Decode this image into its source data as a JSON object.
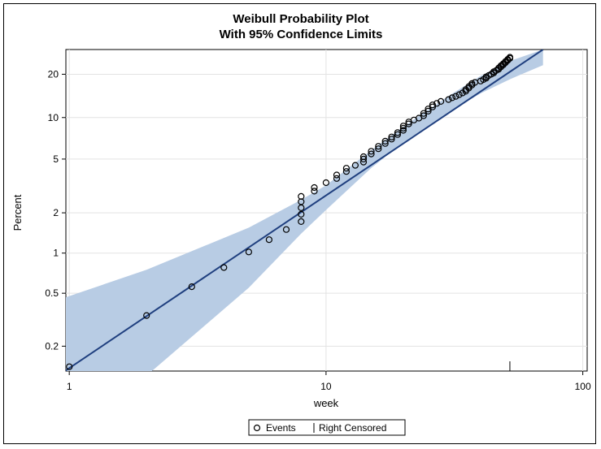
{
  "chart_data": {
    "type": "scatter",
    "title": "Weibull Probability Plot",
    "subtitle": "With 95% Confidence Limits",
    "xlabel": "week",
    "ylabel": "Percent",
    "x_scale": "log",
    "y_scale": "weibull",
    "xlim": [
      0.97,
      104
    ],
    "ylim": [
      0.13,
      29
    ],
    "x_ticks": [
      1,
      10,
      100
    ],
    "x_tick_labels": [
      "1",
      "10",
      "100"
    ],
    "y_ticks": [
      0.2,
      0.5,
      1,
      2,
      5,
      10,
      20
    ],
    "y_tick_labels": [
      "0.2",
      "0.5",
      "1",
      "2",
      "5",
      "10",
      "20"
    ],
    "grid": true,
    "censor_mark_week": 52,
    "legend": {
      "placement": "bottom",
      "entries": [
        {
          "symbol": "circle",
          "label": "Events"
        },
        {
          "symbol": "bar",
          "label": "Right Censored"
        }
      ]
    },
    "fit_line": {
      "x": [
        0.95,
        70
      ],
      "y": [
        0.128,
        29
      ]
    },
    "confidence_band": {
      "x": [
        0.95,
        2,
        5,
        8,
        10,
        15,
        20,
        30,
        40,
        52,
        70
      ],
      "lower": [
        0.036,
        0.12,
        0.55,
        1.4,
        2.1,
        4.3,
        6.6,
        10.9,
        14.8,
        18.5,
        23
      ],
      "upper": [
        0.46,
        0.75,
        1.55,
        2.5,
        3.2,
        5.8,
        8.6,
        14.2,
        19.5,
        24.5,
        29
      ]
    },
    "series": [
      {
        "marker": "circle",
        "points": [
          [
            1,
            0.14
          ],
          [
            2,
            0.34
          ],
          [
            3,
            0.56
          ],
          [
            4,
            0.78
          ],
          [
            5,
            1.02
          ],
          [
            6,
            1.26
          ],
          [
            7,
            1.5
          ],
          [
            8,
            1.72
          ],
          [
            8,
            1.95
          ],
          [
            8,
            2.18
          ],
          [
            8,
            2.42
          ],
          [
            8,
            2.65
          ],
          [
            9,
            2.9
          ],
          [
            9,
            3.08
          ],
          [
            10,
            3.35
          ],
          [
            11,
            3.6
          ],
          [
            11,
            3.82
          ],
          [
            12,
            4.05
          ],
          [
            12,
            4.28
          ],
          [
            13,
            4.5
          ],
          [
            14,
            4.75
          ],
          [
            14,
            5.0
          ],
          [
            14,
            5.2
          ],
          [
            15,
            5.45
          ],
          [
            15,
            5.7
          ],
          [
            16,
            5.95
          ],
          [
            16,
            6.2
          ],
          [
            17,
            6.5
          ],
          [
            17,
            6.75
          ],
          [
            18,
            7.0
          ],
          [
            18,
            7.25
          ],
          [
            19,
            7.55
          ],
          [
            19,
            7.8
          ],
          [
            20,
            8.1
          ],
          [
            20,
            8.4
          ],
          [
            20,
            8.7
          ],
          [
            21,
            9.0
          ],
          [
            21,
            9.3
          ],
          [
            22,
            9.6
          ],
          [
            23,
            9.9
          ],
          [
            24,
            10.3
          ],
          [
            24,
            10.7
          ],
          [
            25,
            11.1
          ],
          [
            25,
            11.5
          ],
          [
            26,
            11.9
          ],
          [
            26,
            12.3
          ],
          [
            27,
            12.6
          ],
          [
            28,
            13.0
          ],
          [
            30,
            13.4
          ],
          [
            31,
            13.8
          ],
          [
            32,
            14.1
          ],
          [
            33,
            14.5
          ],
          [
            34,
            14.9
          ],
          [
            35,
            15.3
          ],
          [
            35,
            15.7
          ],
          [
            36,
            16.1
          ],
          [
            36,
            16.5
          ],
          [
            37,
            16.9
          ],
          [
            37,
            17.3
          ],
          [
            38,
            17.6
          ],
          [
            40,
            18.0
          ],
          [
            41,
            18.4
          ],
          [
            42,
            18.8
          ],
          [
            42,
            19.2
          ],
          [
            43,
            19.6
          ],
          [
            44,
            20.0
          ],
          [
            45,
            20.4
          ],
          [
            45,
            20.8
          ],
          [
            46,
            21.2
          ],
          [
            47,
            21.6
          ],
          [
            47,
            22.0
          ],
          [
            48,
            22.4
          ],
          [
            48,
            22.8
          ],
          [
            49,
            23.1
          ],
          [
            49,
            23.5
          ],
          [
            50,
            23.9
          ],
          [
            50,
            24.3
          ],
          [
            51,
            24.7
          ],
          [
            51,
            25.1
          ],
          [
            52,
            25.5
          ],
          [
            52,
            25.9
          ]
        ]
      }
    ],
    "colors": {
      "band": "#b8cce4",
      "fit_line": "#1f3f7f",
      "marker": "#000000",
      "grid": "#e3e3e3",
      "axis": "#000000"
    }
  }
}
